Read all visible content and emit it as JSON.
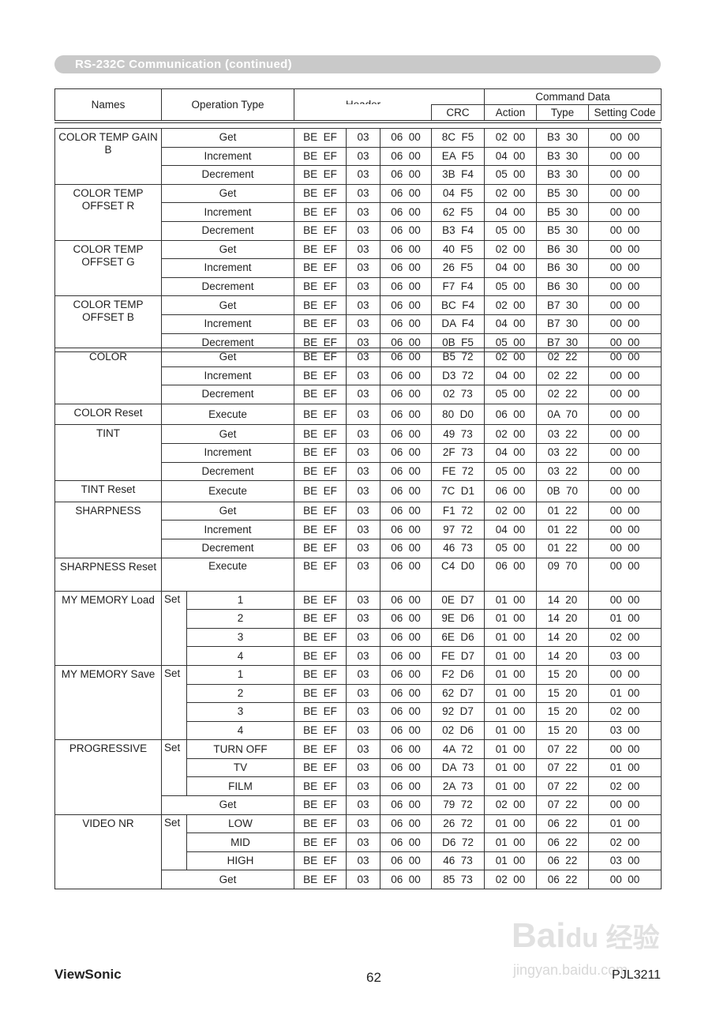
{
  "title": "RS-232C Communication (continued)",
  "header": {
    "names": "Names",
    "operation_type": "Operation Type",
    "header": "Header",
    "command_data": "Command Data",
    "crc": "CRC",
    "action": "Action",
    "type": "Type",
    "setting_code": "Setting Code"
  },
  "tables": [
    [
      {
        "name": "COLOR TEMP GAIN B",
        "rows": [
          {
            "op": "Get",
            "cells": [
              "BE  EF",
              "03",
              "06  00",
              "8C  F5",
              "02  00",
              "B3  30",
              "00  00"
            ]
          },
          {
            "op": "Increment",
            "cells": [
              "BE  EF",
              "03",
              "06  00",
              "EA  F5",
              "04  00",
              "B3  30",
              "00  00"
            ]
          },
          {
            "op": "Decrement",
            "cells": [
              "BE  EF",
              "03",
              "06  00",
              "3B  F4",
              "05  00",
              "B3  30",
              "00  00"
            ]
          }
        ]
      },
      {
        "name": "COLOR TEMP OFFSET R",
        "rows": [
          {
            "op": "Get",
            "cells": [
              "BE  EF",
              "03",
              "06  00",
              "04  F5",
              "02  00",
              "B5  30",
              "00  00"
            ]
          },
          {
            "op": "Increment",
            "cells": [
              "BE  EF",
              "03",
              "06  00",
              "62  F5",
              "04  00",
              "B5  30",
              "00  00"
            ]
          },
          {
            "op": "Decrement",
            "cells": [
              "BE  EF",
              "03",
              "06  00",
              "B3  F4",
              "05  00",
              "B5  30",
              "00  00"
            ]
          }
        ]
      },
      {
        "name": "COLOR TEMP OFFSET G",
        "rows": [
          {
            "op": "Get",
            "cells": [
              "BE  EF",
              "03",
              "06  00",
              "40  F5",
              "02  00",
              "B6  30",
              "00  00"
            ]
          },
          {
            "op": "Increment",
            "cells": [
              "BE  EF",
              "03",
              "06  00",
              "26  F5",
              "04  00",
              "B6  30",
              "00  00"
            ]
          },
          {
            "op": "Decrement",
            "cells": [
              "BE  EF",
              "03",
              "06  00",
              "F7  F4",
              "05  00",
              "B6  30",
              "00  00"
            ]
          }
        ]
      },
      {
        "name": "COLOR TEMP OFFSET B",
        "rows": [
          {
            "op": "Get",
            "cells": [
              "BE  EF",
              "03",
              "06  00",
              "BC  F4",
              "02  00",
              "B7  30",
              "00  00"
            ]
          },
          {
            "op": "Increment",
            "cells": [
              "BE  EF",
              "03",
              "06  00",
              "DA  F4",
              "04  00",
              "B7  30",
              "00  00"
            ]
          },
          {
            "op": "Decrement",
            "cells": [
              "BE  EF",
              "03",
              "06  00",
              "0B  F5",
              "05  00",
              "B7  30",
              "00  00"
            ]
          }
        ]
      }
    ],
    [
      {
        "name": "COLOR",
        "rows": [
          {
            "op": "Get",
            "cells": [
              "BE  EF",
              "03",
              "06  00",
              "B5  72",
              "02  00",
              "02  22",
              "00  00"
            ]
          },
          {
            "op": "Increment",
            "cells": [
              "BE  EF",
              "03",
              "06  00",
              "D3  72",
              "04  00",
              "02  22",
              "00  00"
            ]
          },
          {
            "op": "Decrement",
            "cells": [
              "BE  EF",
              "03",
              "06  00",
              "02  73",
              "05  00",
              "02  22",
              "00  00"
            ]
          }
        ]
      },
      {
        "name": "COLOR Reset",
        "rows": [
          {
            "op": "Execute",
            "cells": [
              "BE  EF",
              "03",
              "06  00",
              "80  D0",
              "06  00",
              "0A  70",
              "00  00"
            ]
          }
        ]
      },
      {
        "name": "TINT",
        "rows": [
          {
            "op": "Get",
            "cells": [
              "BE  EF",
              "03",
              "06  00",
              "49  73",
              "02  00",
              "03  22",
              "00  00"
            ]
          },
          {
            "op": "Increment",
            "cells": [
              "BE  EF",
              "03",
              "06  00",
              "2F  73",
              "04  00",
              "03  22",
              "00  00"
            ]
          },
          {
            "op": "Decrement",
            "cells": [
              "BE  EF",
              "03",
              "06  00",
              "FE  72",
              "05  00",
              "03  22",
              "00  00"
            ]
          }
        ]
      },
      {
        "name": "TINT Reset",
        "rows": [
          {
            "op": "Execute",
            "cells": [
              "BE  EF",
              "03",
              "06  00",
              "7C  D1",
              "06  00",
              "0B  70",
              "00  00"
            ]
          }
        ]
      },
      {
        "name": "SHARPNESS",
        "rows": [
          {
            "op": "Get",
            "cells": [
              "BE  EF",
              "03",
              "06  00",
              "F1  72",
              "02  00",
              "01  22",
              "00  00"
            ]
          },
          {
            "op": "Increment",
            "cells": [
              "BE  EF",
              "03",
              "06  00",
              "97  72",
              "04  00",
              "01  22",
              "00  00"
            ]
          },
          {
            "op": "Decrement",
            "cells": [
              "BE  EF",
              "03",
              "06  00",
              "46  73",
              "05  00",
              "01  22",
              "00  00"
            ]
          }
        ]
      },
      {
        "name": "SHARPNESS Reset",
        "tall": true,
        "rows": [
          {
            "op": "Execute",
            "cells": [
              "BE  EF",
              "03",
              "06  00",
              "C4  D0",
              "06  00",
              "09  70",
              "00  00"
            ]
          }
        ]
      },
      {
        "name": "MY MEMORY Load",
        "set_label": "Set",
        "rows": [
          {
            "set": true,
            "op": "1",
            "cells": [
              "BE  EF",
              "03",
              "06  00",
              "0E  D7",
              "01  00",
              "14  20",
              "00  00"
            ]
          },
          {
            "set": true,
            "op": "2",
            "cells": [
              "BE  EF",
              "03",
              "06  00",
              "9E  D6",
              "01  00",
              "14  20",
              "01  00"
            ]
          },
          {
            "set": true,
            "op": "3",
            "cells": [
              "BE  EF",
              "03",
              "06  00",
              "6E  D6",
              "01  00",
              "14  20",
              "02  00"
            ]
          },
          {
            "set": true,
            "op": "4",
            "cells": [
              "BE  EF",
              "03",
              "06  00",
              "FE  D7",
              "01  00",
              "14  20",
              "03  00"
            ]
          }
        ]
      },
      {
        "name": "MY MEMORY Save",
        "set_label": "Set",
        "rows": [
          {
            "set": true,
            "op": "1",
            "cells": [
              "BE  EF",
              "03",
              "06  00",
              "F2  D6",
              "01  00",
              "15  20",
              "00  00"
            ]
          },
          {
            "set": true,
            "op": "2",
            "cells": [
              "BE  EF",
              "03",
              "06  00",
              "62  D7",
              "01  00",
              "15  20",
              "01  00"
            ]
          },
          {
            "set": true,
            "op": "3",
            "cells": [
              "BE  EF",
              "03",
              "06  00",
              "92  D7",
              "01  00",
              "15  20",
              "02  00"
            ]
          },
          {
            "set": true,
            "op": "4",
            "cells": [
              "BE  EF",
              "03",
              "06  00",
              "02  D6",
              "01  00",
              "15  20",
              "03  00"
            ]
          }
        ]
      },
      {
        "name": "PROGRESSIVE",
        "set_label": "Set",
        "rows": [
          {
            "set": true,
            "op": "TURN OFF",
            "cells": [
              "BE  EF",
              "03",
              "06  00",
              "4A  72",
              "01  00",
              "07  22",
              "00  00"
            ]
          },
          {
            "set": true,
            "op": "TV",
            "cells": [
              "BE  EF",
              "03",
              "06  00",
              "DA  73",
              "01  00",
              "07  22",
              "01  00"
            ]
          },
          {
            "set": true,
            "op": "FILM",
            "cells": [
              "BE  EF",
              "03",
              "06  00",
              "2A  73",
              "01  00",
              "07  22",
              "02  00"
            ]
          },
          {
            "op": "Get",
            "cells": [
              "BE  EF",
              "03",
              "06  00",
              "79  72",
              "02  00",
              "07  22",
              "00  00"
            ]
          }
        ]
      },
      {
        "name": "VIDEO NR",
        "set_label": "Set",
        "rows": [
          {
            "set": true,
            "op": "LOW",
            "cells": [
              "BE  EF",
              "03",
              "06  00",
              "26  72",
              "01  00",
              "06  22",
              "01  00"
            ]
          },
          {
            "set": true,
            "op": "MID",
            "cells": [
              "BE  EF",
              "03",
              "06  00",
              "D6  72",
              "01  00",
              "06  22",
              "02  00"
            ]
          },
          {
            "set": true,
            "op": "HIGH",
            "cells": [
              "BE  EF",
              "03",
              "06  00",
              "46  73",
              "01  00",
              "06  22",
              "03  00"
            ]
          },
          {
            "op": "Get",
            "cells": [
              "BE  EF",
              "03",
              "06  00",
              "85  73",
              "02  00",
              "06  22",
              "00  00"
            ]
          }
        ]
      }
    ]
  ],
  "footer": {
    "brand": "ViewSonic",
    "page": "62",
    "model": "PJL3211"
  },
  "watermark": {
    "logo": "Baidu 经验",
    "url": "jingyan.baidu.com"
  }
}
